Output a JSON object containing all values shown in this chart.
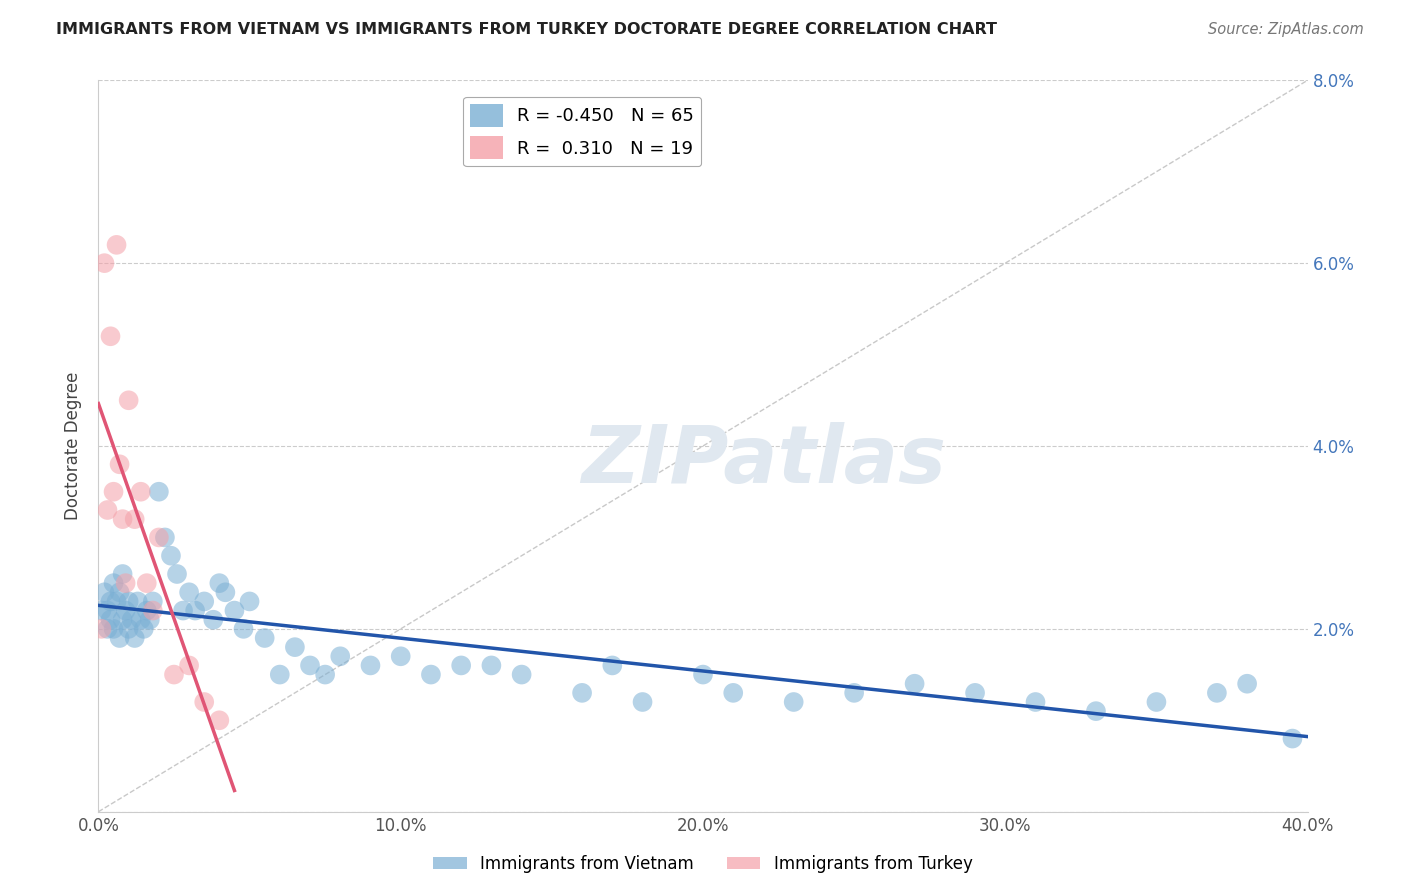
{
  "title": "IMMIGRANTS FROM VIETNAM VS IMMIGRANTS FROM TURKEY DOCTORATE DEGREE CORRELATION CHART",
  "source": "Source: ZipAtlas.com",
  "ylabel": "Doctorate Degree",
  "xlim": [
    0.0,
    0.4
  ],
  "ylim": [
    0.0,
    0.08
  ],
  "xtick_labels": [
    "0.0%",
    "10.0%",
    "20.0%",
    "30.0%",
    "40.0%"
  ],
  "xtick_vals": [
    0.0,
    0.1,
    0.2,
    0.3,
    0.4
  ],
  "ytick_labels": [
    "",
    "2.0%",
    "4.0%",
    "6.0%",
    "8.0%"
  ],
  "ytick_vals": [
    0.0,
    0.02,
    0.04,
    0.06,
    0.08
  ],
  "vietnam_color": "#7BAFD4",
  "turkey_color": "#F4A0A8",
  "vietnam_line_color": "#2255AA",
  "turkey_line_color": "#E05575",
  "vietnam_R": -0.45,
  "vietnam_N": 65,
  "turkey_R": 0.31,
  "turkey_N": 19,
  "legend_vietnam": "Immigrants from Vietnam",
  "legend_turkey": "Immigrants from Turkey",
  "background_color": "#ffffff",
  "grid_color": "#cccccc",
  "watermark_color": "#e0e8f0",
  "vietnam_x": [
    0.001,
    0.002,
    0.003,
    0.003,
    0.004,
    0.004,
    0.005,
    0.005,
    0.006,
    0.007,
    0.007,
    0.008,
    0.008,
    0.009,
    0.01,
    0.01,
    0.011,
    0.012,
    0.013,
    0.014,
    0.015,
    0.016,
    0.017,
    0.018,
    0.02,
    0.022,
    0.024,
    0.026,
    0.028,
    0.03,
    0.032,
    0.035,
    0.038,
    0.04,
    0.042,
    0.045,
    0.048,
    0.05,
    0.055,
    0.06,
    0.065,
    0.07,
    0.075,
    0.08,
    0.09,
    0.1,
    0.11,
    0.12,
    0.13,
    0.14,
    0.16,
    0.17,
    0.18,
    0.2,
    0.21,
    0.23,
    0.25,
    0.27,
    0.29,
    0.31,
    0.33,
    0.35,
    0.37,
    0.38,
    0.395
  ],
  "vietnam_y": [
    0.022,
    0.024,
    0.02,
    0.022,
    0.021,
    0.023,
    0.02,
    0.025,
    0.023,
    0.019,
    0.024,
    0.021,
    0.026,
    0.022,
    0.02,
    0.023,
    0.021,
    0.019,
    0.023,
    0.021,
    0.02,
    0.022,
    0.021,
    0.023,
    0.035,
    0.03,
    0.028,
    0.026,
    0.022,
    0.024,
    0.022,
    0.023,
    0.021,
    0.025,
    0.024,
    0.022,
    0.02,
    0.023,
    0.019,
    0.015,
    0.018,
    0.016,
    0.015,
    0.017,
    0.016,
    0.017,
    0.015,
    0.016,
    0.016,
    0.015,
    0.013,
    0.016,
    0.012,
    0.015,
    0.013,
    0.012,
    0.013,
    0.014,
    0.013,
    0.012,
    0.011,
    0.012,
    0.013,
    0.014,
    0.008
  ],
  "turkey_x": [
    0.001,
    0.002,
    0.003,
    0.004,
    0.005,
    0.006,
    0.007,
    0.008,
    0.009,
    0.01,
    0.012,
    0.014,
    0.016,
    0.018,
    0.02,
    0.025,
    0.03,
    0.035,
    0.04
  ],
  "turkey_y": [
    0.02,
    0.06,
    0.033,
    0.052,
    0.035,
    0.062,
    0.038,
    0.032,
    0.025,
    0.045,
    0.032,
    0.035,
    0.025,
    0.022,
    0.03,
    0.015,
    0.016,
    0.012,
    0.01
  ]
}
